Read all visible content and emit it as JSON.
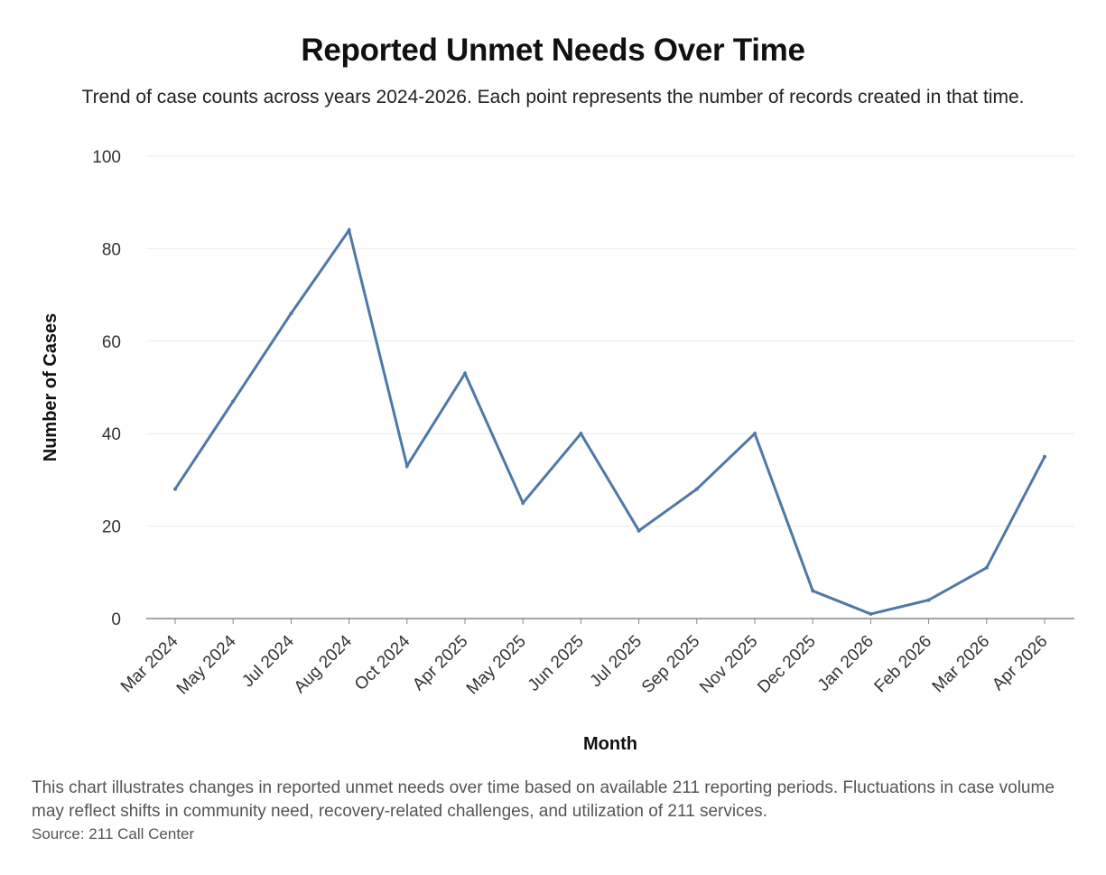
{
  "title": "Reported Unmet Needs Over Time",
  "subtitle": "Trend of case counts across years 2024-2026. Each point represents the number of records created in that time.",
  "footnote": "This chart illustrates changes in reported unmet needs over time based on available 211 reporting periods. Fluctuations in case volume may reflect shifts in community need, recovery-related challenges, and utilization of 211 services.",
  "source": "Source: 211 Call Center",
  "colors": {
    "line": "#4e79a7",
    "grid": "#ebebeb",
    "axis": "#888888"
  },
  "chart_data": {
    "type": "line",
    "title": "Reported Unmet Needs Over Time",
    "xlabel": "Month",
    "ylabel": "Number of Cases",
    "ylim": [
      0,
      100
    ],
    "yticks": [
      0,
      20,
      40,
      60,
      80,
      100
    ],
    "grid": "horizontal",
    "categories": [
      "Mar 2024",
      "May 2024",
      "Jul 2024",
      "Aug 2024",
      "Oct 2024",
      "Apr 2025",
      "May 2025",
      "Jun 2025",
      "Jul 2025",
      "Sep 2025",
      "Nov 2025",
      "Dec 2025",
      "Jan 2026",
      "Feb 2026",
      "Mar 2026",
      "Apr 2026"
    ],
    "series": [
      {
        "values": [
          28,
          47,
          66,
          84,
          33,
          53,
          25,
          40,
          19,
          28,
          40,
          6,
          1,
          4,
          11,
          35
        ]
      }
    ]
  }
}
